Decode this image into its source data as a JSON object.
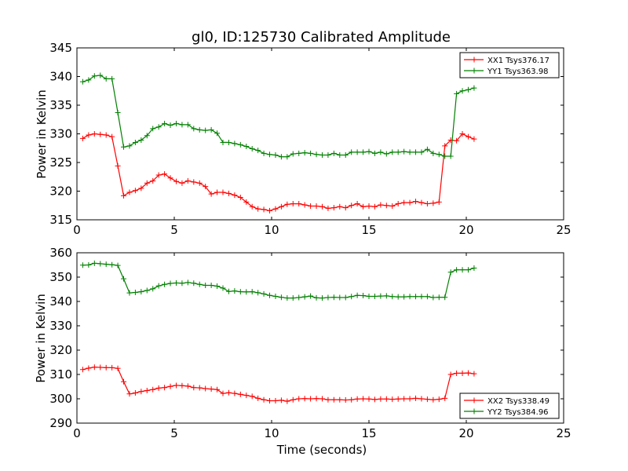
{
  "figure": {
    "title": "gl0, ID:125730 Calibrated Amplitude",
    "xlabel": "Time (seconds)"
  },
  "colors": {
    "XX": "#ff0000",
    "YY": "#008000",
    "axis": "#000000",
    "background": "#ffffff"
  },
  "chart_data": [
    {
      "type": "line",
      "title": "gl0, ID:125730 Calibrated Amplitude",
      "xlabel": "",
      "ylabel": "Power in Kelvin",
      "xlim": [
        0,
        25
      ],
      "ylim": [
        315,
        345
      ],
      "xticks": [
        0,
        5,
        10,
        15,
        20,
        25
      ],
      "yticks": [
        315,
        320,
        325,
        330,
        335,
        340,
        345
      ],
      "grid": false,
      "legend_position": "top-right",
      "series": [
        {
          "name": "XX1 Tsys376.17",
          "color": "#ff0000",
          "marker": "+",
          "x": [
            0.3,
            0.6,
            0.9,
            1.2,
            1.5,
            1.8,
            2.1,
            2.4,
            2.7,
            3.0,
            3.3,
            3.6,
            3.9,
            4.2,
            4.5,
            4.8,
            5.1,
            5.4,
            5.7,
            6.0,
            6.3,
            6.6,
            6.9,
            7.2,
            7.5,
            7.8,
            8.1,
            8.4,
            8.7,
            9.0,
            9.3,
            9.6,
            9.9,
            10.2,
            10.5,
            10.8,
            11.1,
            11.4,
            11.7,
            12.0,
            12.3,
            12.6,
            12.9,
            13.2,
            13.5,
            13.8,
            14.1,
            14.4,
            14.7,
            15.0,
            15.3,
            15.6,
            15.9,
            16.2,
            16.5,
            16.8,
            17.1,
            17.4,
            17.7,
            18.0,
            18.3,
            18.6,
            18.9,
            19.2,
            19.5,
            19.8,
            20.1,
            20.4
          ],
          "y": [
            329.2,
            329.8,
            330.0,
            329.9,
            329.8,
            329.5,
            324.4,
            319.2,
            319.8,
            320.1,
            320.5,
            321.4,
            321.8,
            322.8,
            323.0,
            322.3,
            321.7,
            321.4,
            321.8,
            321.6,
            321.4,
            320.8,
            319.5,
            319.8,
            319.8,
            319.6,
            319.3,
            318.9,
            318.1,
            317.3,
            316.9,
            316.8,
            316.6,
            316.9,
            317.3,
            317.7,
            317.8,
            317.8,
            317.6,
            317.4,
            317.4,
            317.3,
            317.0,
            317.1,
            317.3,
            317.1,
            317.5,
            317.8,
            317.3,
            317.4,
            317.3,
            317.6,
            317.5,
            317.4,
            317.8,
            318.0,
            318.0,
            318.2,
            318.0,
            317.8,
            317.9,
            318.1,
            327.9,
            328.9,
            328.8,
            330.0,
            329.5,
            329.1
          ]
        },
        {
          "name": "YY1 Tsys363.98",
          "color": "#008000",
          "marker": "+",
          "x": [
            0.3,
            0.6,
            0.9,
            1.2,
            1.5,
            1.8,
            2.1,
            2.4,
            2.7,
            3.0,
            3.3,
            3.6,
            3.9,
            4.2,
            4.5,
            4.8,
            5.1,
            5.4,
            5.7,
            6.0,
            6.3,
            6.6,
            6.9,
            7.2,
            7.5,
            7.8,
            8.1,
            8.4,
            8.7,
            9.0,
            9.3,
            9.6,
            9.9,
            10.2,
            10.5,
            10.8,
            11.1,
            11.4,
            11.7,
            12.0,
            12.3,
            12.6,
            12.9,
            13.2,
            13.5,
            13.8,
            14.1,
            14.4,
            14.7,
            15.0,
            15.3,
            15.6,
            15.9,
            16.2,
            16.5,
            16.8,
            17.1,
            17.4,
            17.7,
            18.0,
            18.3,
            18.6,
            18.9,
            19.2,
            19.5,
            19.8,
            20.1,
            20.4
          ],
          "y": [
            339.1,
            339.4,
            340.1,
            340.2,
            339.6,
            339.6,
            333.7,
            327.7,
            327.9,
            328.5,
            328.9,
            329.7,
            330.9,
            331.2,
            331.8,
            331.5,
            331.8,
            331.6,
            331.6,
            330.9,
            330.7,
            330.6,
            330.7,
            330.1,
            328.5,
            328.5,
            328.3,
            328.1,
            327.8,
            327.4,
            327.1,
            326.6,
            326.4,
            326.3,
            326.0,
            326.0,
            326.5,
            326.6,
            326.7,
            326.6,
            326.4,
            326.3,
            326.3,
            326.6,
            326.3,
            326.3,
            326.8,
            326.8,
            326.8,
            326.9,
            326.6,
            326.8,
            326.5,
            326.8,
            326.8,
            326.9,
            326.8,
            326.8,
            326.8,
            327.3,
            326.6,
            326.4,
            326.1,
            326.1,
            337.0,
            337.5,
            337.7,
            338.0
          ]
        }
      ]
    },
    {
      "type": "line",
      "title": "",
      "xlabel": "Time (seconds)",
      "ylabel": "Power in Kelvin",
      "xlim": [
        0,
        25
      ],
      "ylim": [
        290,
        360
      ],
      "xticks": [
        0,
        5,
        10,
        15,
        20,
        25
      ],
      "yticks": [
        290,
        300,
        310,
        320,
        330,
        340,
        350,
        360
      ],
      "grid": false,
      "legend_position": "bottom-right",
      "series": [
        {
          "name": "XX2 Tsys338.49",
          "color": "#ff0000",
          "marker": "+",
          "x": [
            0.3,
            0.6,
            0.9,
            1.2,
            1.5,
            1.8,
            2.1,
            2.4,
            2.7,
            3.0,
            3.3,
            3.6,
            3.9,
            4.2,
            4.5,
            4.8,
            5.1,
            5.4,
            5.7,
            6.0,
            6.3,
            6.6,
            6.9,
            7.2,
            7.5,
            7.8,
            8.1,
            8.4,
            8.7,
            9.0,
            9.3,
            9.6,
            9.9,
            10.2,
            10.5,
            10.8,
            11.1,
            11.4,
            11.7,
            12.0,
            12.3,
            12.6,
            12.9,
            13.2,
            13.5,
            13.8,
            14.1,
            14.4,
            14.7,
            15.0,
            15.3,
            15.6,
            15.9,
            16.2,
            16.5,
            16.8,
            17.1,
            17.4,
            17.7,
            18.0,
            18.3,
            18.6,
            18.9,
            19.2,
            19.5,
            19.8,
            20.1,
            20.4
          ],
          "y": [
            312.0,
            312.6,
            313.0,
            312.9,
            312.8,
            312.8,
            312.5,
            307.0,
            302.0,
            302.4,
            303.0,
            303.4,
            303.8,
            304.4,
            304.6,
            305.1,
            305.5,
            305.4,
            305.2,
            304.6,
            304.5,
            304.2,
            304.0,
            303.8,
            302.2,
            302.5,
            302.2,
            301.8,
            301.4,
            301.0,
            300.2,
            299.6,
            299.2,
            299.2,
            299.4,
            299.0,
            299.6,
            300.0,
            300.1,
            300.0,
            300.1,
            300.0,
            299.6,
            299.6,
            299.6,
            299.5,
            299.6,
            299.9,
            300.0,
            299.9,
            299.7,
            299.9,
            299.9,
            299.8,
            299.9,
            300.0,
            300.0,
            300.2,
            300.0,
            299.8,
            299.6,
            299.8,
            300.2,
            310.0,
            310.5,
            310.5,
            310.6,
            310.3
          ]
        },
        {
          "name": "YY2 Tsys384.96",
          "color": "#008000",
          "marker": "+",
          "x": [
            0.3,
            0.6,
            0.9,
            1.2,
            1.5,
            1.8,
            2.1,
            2.4,
            2.7,
            3.0,
            3.3,
            3.6,
            3.9,
            4.2,
            4.5,
            4.8,
            5.1,
            5.4,
            5.7,
            6.0,
            6.3,
            6.6,
            6.9,
            7.2,
            7.5,
            7.8,
            8.1,
            8.4,
            8.7,
            9.0,
            9.3,
            9.6,
            9.9,
            10.2,
            10.5,
            10.8,
            11.1,
            11.4,
            11.7,
            12.0,
            12.3,
            12.6,
            12.9,
            13.2,
            13.5,
            13.8,
            14.1,
            14.4,
            14.7,
            15.0,
            15.3,
            15.6,
            15.9,
            16.2,
            16.5,
            16.8,
            17.1,
            17.4,
            17.7,
            18.0,
            18.3,
            18.6,
            18.9,
            19.2,
            19.5,
            19.8,
            20.1,
            20.4
          ],
          "y": [
            354.9,
            355.0,
            355.7,
            355.5,
            355.3,
            355.1,
            354.8,
            349.3,
            343.5,
            343.7,
            344.0,
            344.5,
            345.2,
            346.4,
            347.0,
            347.4,
            347.6,
            347.5,
            347.8,
            347.5,
            347.0,
            346.6,
            346.6,
            346.3,
            345.5,
            344.1,
            344.3,
            344.0,
            343.9,
            344.0,
            343.6,
            343.1,
            342.5,
            342.1,
            341.7,
            341.4,
            341.4,
            341.6,
            341.9,
            342.2,
            341.5,
            341.4,
            341.6,
            341.7,
            341.6,
            341.6,
            342.0,
            342.5,
            342.4,
            342.1,
            342.1,
            342.2,
            342.3,
            342.0,
            341.9,
            341.9,
            342.0,
            342.0,
            342.0,
            342.0,
            341.6,
            341.7,
            341.7,
            352.0,
            353.0,
            353.0,
            353.0,
            353.7
          ]
        }
      ]
    }
  ]
}
